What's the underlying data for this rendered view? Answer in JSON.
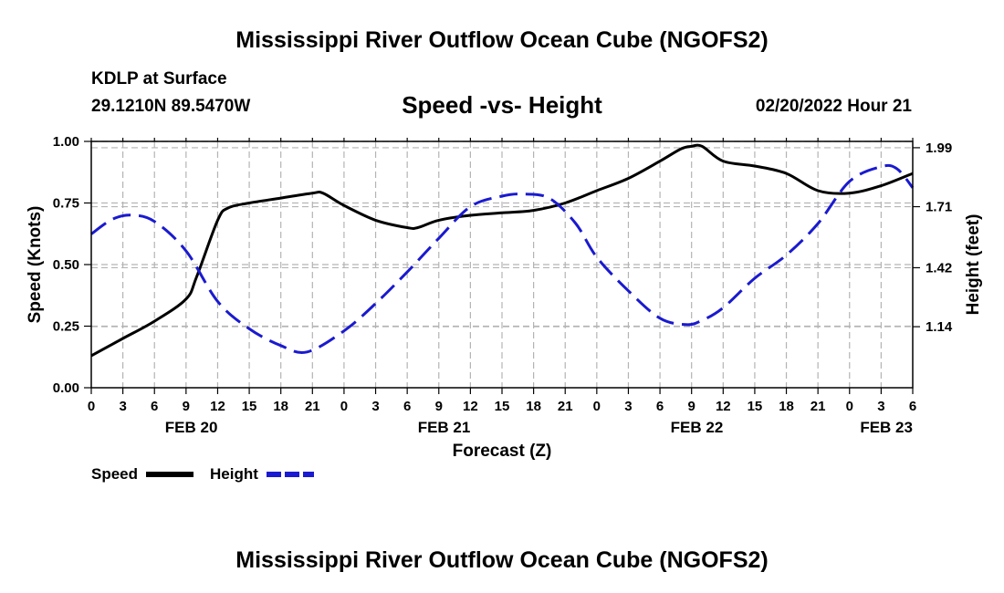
{
  "header": {
    "title": "Mississippi River Outflow Ocean Cube (NGOFS2)",
    "station": "KDLP at Surface",
    "coords": "29.1210N  89.5470W",
    "chart_title": "Speed -vs- Height",
    "datetime": "02/20/2022 Hour 21"
  },
  "footer": {
    "title": "Mississippi River Outflow Ocean Cube (NGOFS2)"
  },
  "colors": {
    "speed": "#000000",
    "height": "#1a1ad0",
    "grid": "#b4b4b4"
  },
  "chart_data": {
    "type": "line",
    "title": "Speed -vs- Height",
    "xlabel": "Forecast (Z)",
    "ylabel": "Speed (Knots)",
    "y2label": "Height (feet)",
    "xlim": [
      0,
      78
    ],
    "ylim": [
      0,
      1
    ],
    "y2lim": [
      0.85,
      2.02
    ],
    "yticks": [
      0,
      0.25,
      0.5,
      0.75,
      1.0
    ],
    "ytick_labels": [
      "0.00",
      "0.25",
      "0.50",
      "0.75",
      "1.00"
    ],
    "y2ticks": [
      1.14,
      1.42,
      1.71,
      1.99
    ],
    "y2tick_labels": [
      "1.14",
      "1.42",
      "1.71",
      "1.99"
    ],
    "xtick_labels": [
      "0",
      "3",
      "6",
      "9",
      "12",
      "15",
      "18",
      "21",
      "0",
      "3",
      "6",
      "9",
      "12",
      "15",
      "18",
      "21",
      "0",
      "3",
      "6",
      "9",
      "12",
      "15",
      "18",
      "21",
      "0",
      "3",
      "6"
    ],
    "date_labels": [
      {
        "label": "FEB 20",
        "x": 9.5
      },
      {
        "label": "FEB 21",
        "x": 33.5
      },
      {
        "label": "FEB 22",
        "x": 57.5
      },
      {
        "label": "FEB 23",
        "x": 75.5
      }
    ],
    "series": [
      {
        "name": "Speed",
        "axis": "left",
        "style": "solid",
        "x": [
          0,
          3,
          6,
          9,
          10,
          12,
          13,
          15,
          18,
          21,
          22,
          24,
          27,
          30,
          31,
          33,
          36,
          39,
          42,
          45,
          48,
          51,
          54,
          56,
          57,
          58,
          60,
          63,
          66,
          69,
          72,
          75,
          78
        ],
        "y": [
          0.13,
          0.2,
          0.27,
          0.36,
          0.45,
          0.68,
          0.73,
          0.75,
          0.77,
          0.79,
          0.79,
          0.74,
          0.68,
          0.65,
          0.65,
          0.68,
          0.7,
          0.71,
          0.72,
          0.75,
          0.8,
          0.85,
          0.92,
          0.97,
          0.98,
          0.98,
          0.92,
          0.9,
          0.87,
          0.8,
          0.79,
          0.82,
          0.87
        ]
      },
      {
        "name": "Height",
        "axis": "right",
        "style": "dashed",
        "x": [
          0,
          2,
          3.8,
          6,
          9,
          12,
          15,
          18,
          20.5,
          24,
          27,
          30,
          33,
          36,
          39,
          41,
          43.5,
          46,
          48,
          51,
          54,
          56.5,
          58,
          60,
          63,
          66,
          69,
          72,
          75,
          76.5,
          78
        ],
        "y": [
          1.58,
          1.65,
          1.67,
          1.64,
          1.5,
          1.26,
          1.13,
          1.05,
          1.02,
          1.12,
          1.25,
          1.4,
          1.56,
          1.71,
          1.76,
          1.77,
          1.75,
          1.63,
          1.47,
          1.31,
          1.18,
          1.15,
          1.17,
          1.23,
          1.37,
          1.48,
          1.63,
          1.83,
          1.9,
          1.89,
          1.8
        ]
      }
    ],
    "legend": [
      {
        "label": "Speed",
        "series": "Speed"
      },
      {
        "label": "Height",
        "series": "Height"
      }
    ]
  }
}
